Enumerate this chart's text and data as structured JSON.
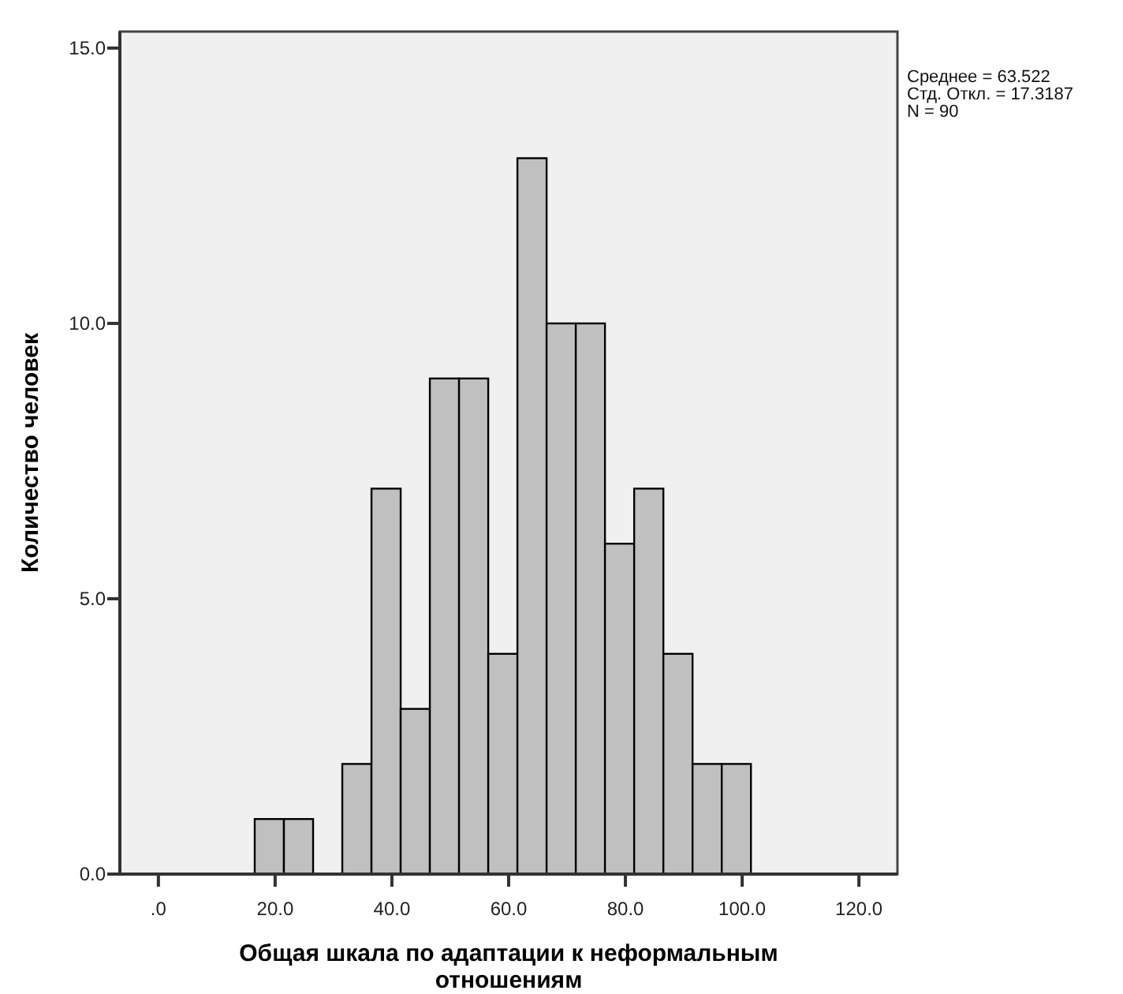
{
  "chart_data": {
    "type": "histogram",
    "xlabel": "Общая шкала по адаптации к неформальным отношениям",
    "ylabel": "Количество человек",
    "bins": [
      16.5,
      21.5,
      26.5,
      31.5,
      36.5,
      41.5,
      46.5,
      51.5,
      56.5,
      61.5,
      66.5,
      71.5,
      76.5,
      81.5,
      86.5,
      91.5,
      96.5,
      101.5
    ],
    "values": [
      1,
      1,
      0,
      2,
      7,
      3,
      9,
      9,
      4,
      13,
      10,
      10,
      6,
      7,
      4,
      2,
      2
    ],
    "color": "#c0c0c0",
    "xlim": [
      -6.6,
      126.6
    ],
    "xticks": [
      {
        "value": 0,
        "label": ".0"
      },
      {
        "value": 20,
        "label": "20.0"
      },
      {
        "value": 40,
        "label": "40.0"
      },
      {
        "value": 60,
        "label": "60.0"
      },
      {
        "value": 80,
        "label": "80.0"
      },
      {
        "value": 100,
        "label": "100.0"
      },
      {
        "value": 120,
        "label": "120.0"
      }
    ],
    "ylim": [
      0,
      15.3
    ],
    "yticks": [
      {
        "value": 0,
        "label": "0.0"
      },
      {
        "value": 5,
        "label": "5.0"
      },
      {
        "value": 10,
        "label": "10.0"
      },
      {
        "value": 15,
        "label": "15.0"
      }
    ],
    "grid": false,
    "annotations": [
      "Среднее = 63.522",
      "Стд. Откл. = 17.3187",
      "N = 90"
    ]
  }
}
